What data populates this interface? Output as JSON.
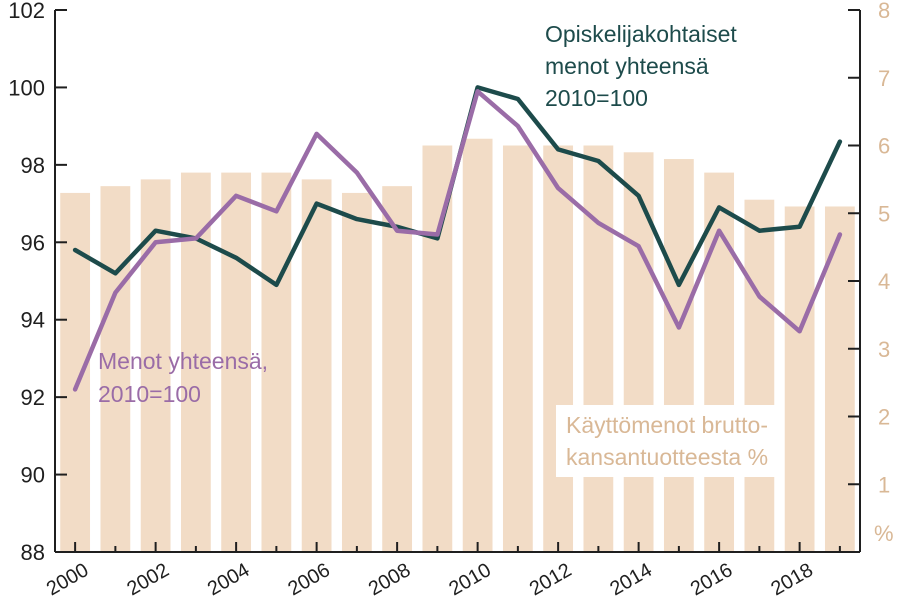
{
  "chart_data": {
    "type": "bar+line",
    "x": [
      2000,
      2001,
      2002,
      2003,
      2004,
      2005,
      2006,
      2007,
      2008,
      2009,
      2010,
      2011,
      2012,
      2013,
      2014,
      2015,
      2016,
      2017,
      2018,
      2019
    ],
    "x_tick_labels": [
      "2000",
      "2002",
      "2004",
      "2006",
      "2008",
      "2010",
      "2012",
      "2014",
      "2016",
      "2018"
    ],
    "y_left": {
      "min": 88,
      "max": 102,
      "ticks": [
        "88",
        "90",
        "92",
        "94",
        "96",
        "98",
        "100",
        "102"
      ]
    },
    "y_right": {
      "min": 0,
      "max": 8,
      "ticks": [
        "1",
        "2",
        "3",
        "4",
        "5",
        "6",
        "7",
        "8"
      ],
      "unit_label": "%"
    },
    "bars": {
      "axis": "right",
      "color": "#f2dcc6",
      "values": [
        5.3,
        5.4,
        5.5,
        5.6,
        5.6,
        5.6,
        5.5,
        5.3,
        5.4,
        6.0,
        6.1,
        6.0,
        6.0,
        6.0,
        5.9,
        5.8,
        5.6,
        5.2,
        5.1,
        5.1
      ]
    },
    "series": [
      {
        "axis": "left",
        "color": "#1d4b4b",
        "values": [
          95.8,
          95.2,
          96.3,
          96.1,
          95.6,
          94.9,
          97.0,
          96.6,
          96.4,
          96.1,
          100.0,
          99.7,
          98.4,
          98.1,
          97.2,
          94.9,
          96.9,
          96.3,
          96.4,
          98.6
        ]
      },
      {
        "axis": "left",
        "color": "#9a6ca7",
        "values": [
          92.2,
          94.7,
          96.0,
          96.1,
          97.2,
          96.8,
          98.8,
          97.8,
          96.3,
          96.2,
          99.9,
          99.0,
          97.4,
          96.5,
          95.9,
          93.8,
          96.3,
          94.6,
          93.7,
          96.2
        ]
      }
    ],
    "annotations": {
      "series1_label": [
        "Opiskelijakohtaiset",
        "menot yhteensä",
        "2010=100"
      ],
      "series2_label": [
        "Menot yhteensä,",
        "2010=100"
      ],
      "bars_label": [
        "Käyttömenot brutto-",
        "kansantuotteesta %"
      ]
    }
  }
}
